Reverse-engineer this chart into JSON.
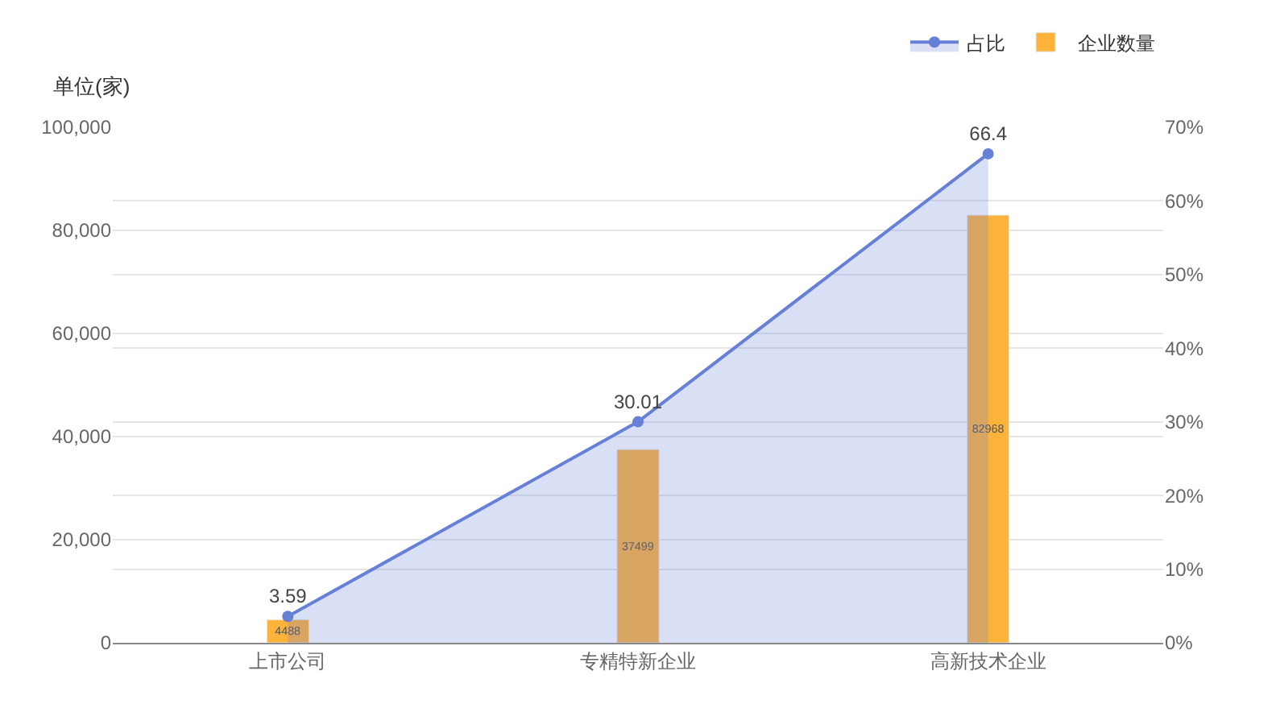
{
  "chart_data": {
    "type": "bar",
    "ylabel": "单位(家)",
    "categories": [
      "上市公司",
      "专精特新企业",
      "高新技术企业"
    ],
    "series": [
      {
        "name": "企业数量",
        "color": "#fdb23a",
        "values": [
          4488,
          37499,
          82968
        ]
      },
      {
        "name": "占比",
        "type": "area",
        "axis": "y2",
        "color": "#6680d8",
        "values": [
          3.59,
          30.01,
          66.4
        ]
      }
    ],
    "ylim": [
      0,
      100000
    ],
    "yticks": [
      0,
      {
        "value": 20000,
        "label": "20,000"
      },
      {
        "value": 40000,
        "label": "40,000"
      },
      {
        "value": 60000,
        "label": "60,000"
      },
      {
        "value": 80000,
        "label": "80,000"
      },
      {
        "value": 100000,
        "label": "100,000"
      }
    ],
    "y2lim": [
      0,
      70
    ],
    "y2ticks": [
      {
        "value": 0,
        "label": "0%"
      },
      {
        "value": 10,
        "label": "10%"
      },
      {
        "value": 20,
        "label": "20%"
      },
      {
        "value": 30,
        "label": "30%"
      },
      {
        "value": 40,
        "label": "40%"
      },
      {
        "value": 50,
        "label": "50%"
      },
      {
        "value": 60,
        "label": "60%"
      },
      {
        "value": 70,
        "label": "70%"
      }
    ],
    "data_labels": true,
    "grid": "y",
    "legend": "top right",
    "marker": "circle"
  }
}
